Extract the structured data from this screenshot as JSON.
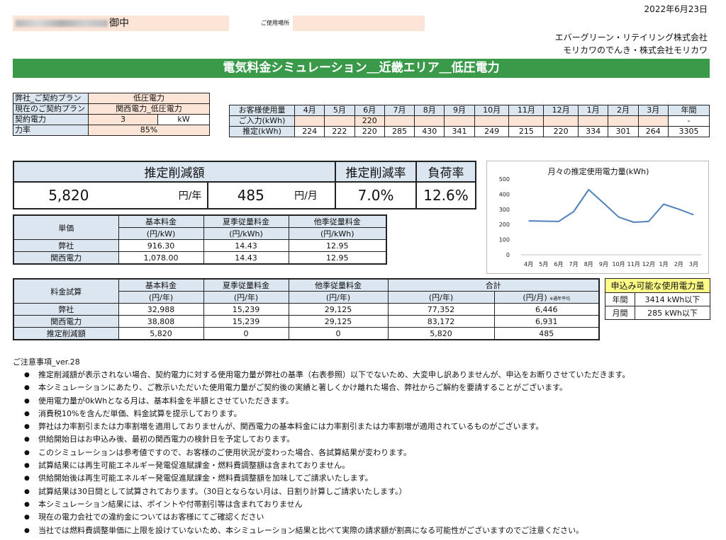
{
  "date": "2022年6月23日",
  "customer_suffix": "御中",
  "place_label": "ご使用場所",
  "company": [
    "エバーグリーン・リテイリング株式会社",
    "モリカワのでんき・株式会社モリカワ"
  ],
  "banner": "電気料金シミュレーション＿近畿エリア＿低圧電力",
  "contract": [
    {
      "label": "弊社_ご契約プラン",
      "value": "低圧電力"
    },
    {
      "label": "現在のご契約プラン",
      "value": "関西電力_低圧電力"
    },
    {
      "label": "契約電力",
      "value": "3",
      "unit": "kW"
    },
    {
      "label": "力率",
      "value": "85%"
    }
  ],
  "usage": {
    "header": "お客様使用量",
    "months": [
      "4月",
      "5月",
      "6月",
      "7月",
      "8月",
      "9月",
      "10月",
      "11月",
      "12月",
      "1月",
      "2月",
      "3月",
      "年間"
    ],
    "input_label": "ご入力(kWh)",
    "input": [
      "",
      "",
      "220",
      "",
      "",
      "",
      "",
      "",
      "",
      "",
      "",
      "",
      "-"
    ],
    "estimate_label": "推定(kWh)",
    "estimate": [
      "224",
      "222",
      "220",
      "285",
      "430",
      "341",
      "249",
      "215",
      "220",
      "334",
      "301",
      "264",
      "3305"
    ]
  },
  "savings": {
    "h_amount": "推定削減額",
    "h_rate": "推定削減率",
    "h_load": "負荷率",
    "yearly": "5,820",
    "yearly_unit": "円/年",
    "monthly": "485",
    "monthly_unit": "円/月",
    "rate": "7.0%",
    "load": "12.6%"
  },
  "unit_price": {
    "title": "単価",
    "h1": "基本料金",
    "h1u": "(円/kW)",
    "h2": "夏季従量料金",
    "h2u": "(円/kWh)",
    "h3": "他季従量料金",
    "h3u": "(円/kWh)",
    "rows": [
      {
        "name": "弊社",
        "v1": "916.30",
        "v2": "14.43",
        "v3": "12.95"
      },
      {
        "name": "関西電力",
        "v1": "1,078.00",
        "v2": "14.43",
        "v3": "12.95"
      }
    ]
  },
  "fee": {
    "title": "料金試算",
    "h1": "基本料金",
    "h2": "夏季従量料金",
    "h3": "他季従量料金",
    "h4": "合計",
    "u_year": "(円/年)",
    "u_month": "(円/月)",
    "note": "※通年平均",
    "rows": [
      {
        "name": "弊社",
        "v1": "32,988",
        "v2": "15,239",
        "v3": "29,125",
        "v4": "77,352",
        "v5": "6,446"
      },
      {
        "name": "関西電力",
        "v1": "38,808",
        "v2": "15,239",
        "v3": "29,125",
        "v4": "83,172",
        "v5": "6,931"
      },
      {
        "name": "推定削減額",
        "v1": "5,820",
        "v2": "0",
        "v3": "0",
        "v4": "5,820",
        "v5": "485"
      }
    ]
  },
  "limit": {
    "title": "申込み可能な使用電力量",
    "rows": [
      {
        "name": "年間",
        "value": "3414 kWh以下"
      },
      {
        "name": "月間",
        "value": "285 kWh以下"
      }
    ]
  },
  "chart_data": {
    "type": "line",
    "title": "月々の推定使用電力量(kWh)",
    "categories": [
      "4月",
      "5月",
      "6月",
      "7月",
      "8月",
      "9月",
      "10月",
      "11月",
      "12月",
      "1月",
      "2月",
      "3月"
    ],
    "values": [
      224,
      222,
      220,
      285,
      430,
      341,
      249,
      215,
      220,
      334,
      301,
      264
    ],
    "yticks": [
      "0",
      "100",
      "200",
      "300",
      "400",
      "500"
    ],
    "ylim": [
      0,
      500
    ],
    "color": "#4f81bd",
    "grid": false
  },
  "notes": {
    "title": "ご注意事項_ver.28",
    "items": [
      "推定削減額が表示されない場合、契約電力に対する使用電力量が弊社の基準（右表参照）以下でないため、大変申し訳ありませんが、申込をお断りさせていただきます。",
      "本シミュレーションにあたり、ご教示いただいた使用電力量がご契約後の実績と著しくかけ離れた場合、弊社からご解約を要請することがございます。",
      "使用電力量が0kWhとなる月は、基本料金を半額とさせていただきます。",
      "消費税10%を含んだ単価、料金試算を提示しております。",
      "弊社は力率割引または力率割増を適用しておりませんが、関西電力の基本料金には力率割引または力率割増が適用されているものがございます。",
      "供給開始日はお申込み後、最初の関西電力の検針日を予定しております。",
      "このシミュレーションは参考値ですので、お客様のご使用状況が変わった場合、各試算結果が変わります。",
      "試算結果には再生可能エネルギー発電促進賦課金・燃料費調整額は含まれておりません。",
      "供給開始後は再生可能エネルギー発電促進賦課金・燃料費調整額を加味してご請求いたします。",
      "試算結果は30日間として試算されております。（30日とならない月は、日割り計算しご請求いたします。）",
      "本シミュレーション結果には、ポイントや付帯割引等は含まれておりません",
      "現在の電力会社での違約金についてはお客様にてご確認ください",
      "当社では燃料費調整単価に上限を設けていないため、本シミュレーション結果と比べて実際の請求額が割高になる可能性がございますのでご注意ください。"
    ]
  }
}
